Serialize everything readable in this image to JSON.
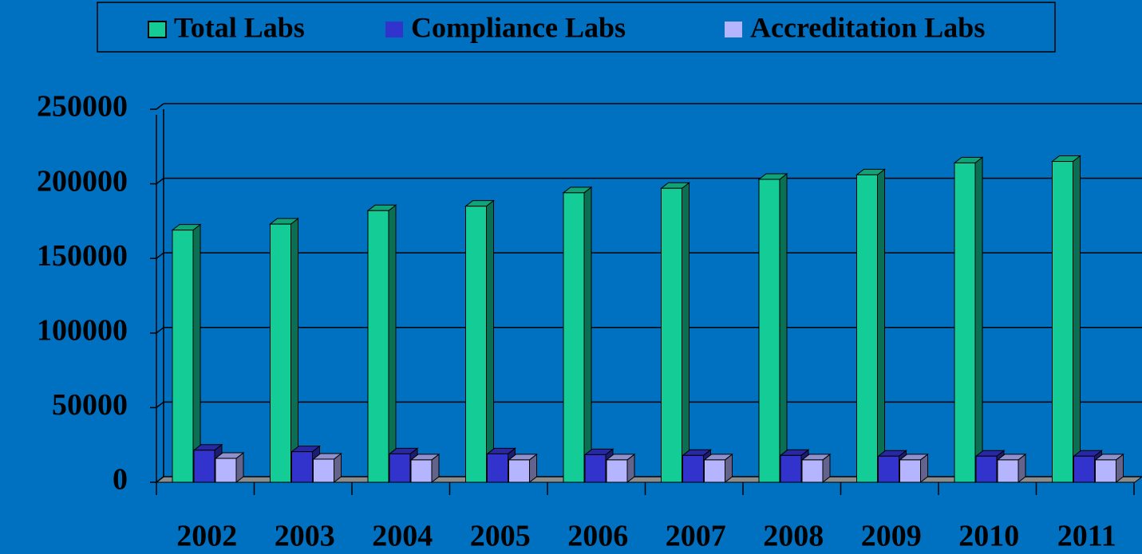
{
  "chart_data": {
    "type": "bar3d",
    "categories": [
      "2002",
      "2003",
      "2004",
      "2005",
      "2006",
      "2007",
      "2008",
      "2009",
      "2010",
      "2011"
    ],
    "series": [
      {
        "name": "Total Labs",
        "color": "#14cc96",
        "values": [
          169000,
          173000,
          182000,
          185000,
          194000,
          197000,
          203000,
          206000,
          214000,
          215000
        ]
      },
      {
        "name": "Compliance Labs",
        "color": "#3232cc",
        "values": [
          21500,
          20500,
          19000,
          19000,
          18500,
          18000,
          18000,
          17500,
          17500,
          17500
        ]
      },
      {
        "name": "Accreditation Labs",
        "color": "#b4b4ff",
        "values": [
          16000,
          15500,
          15000,
          15000,
          15000,
          15000,
          15000,
          15000,
          15000,
          15000
        ]
      }
    ],
    "ylim": [
      0,
      250000
    ],
    "yticks": [
      0,
      50000,
      100000,
      150000,
      200000,
      250000
    ],
    "grid": true,
    "legend": "top"
  }
}
